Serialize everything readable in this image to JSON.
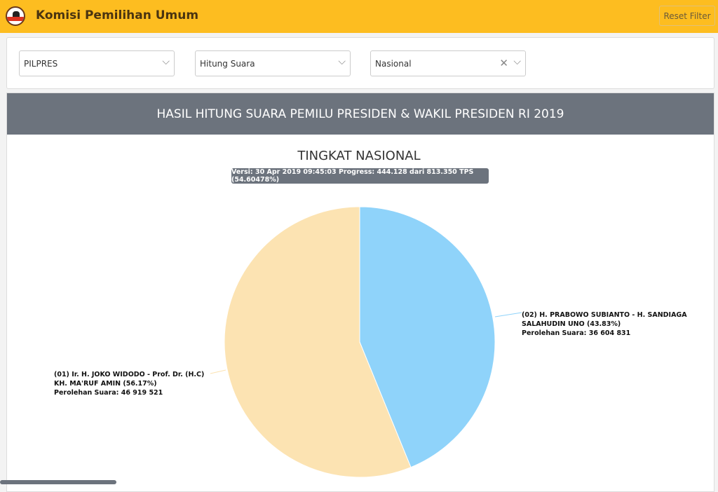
{
  "header": {
    "title": "Komisi Pemilihan Umum",
    "reset_label": "Reset Filter"
  },
  "filters": {
    "election": "PILPRES",
    "type": "Hitung Suara",
    "region": "Nasional"
  },
  "panel": {
    "title": "HASIL HITUNG SUARA PEMILU PRESIDEN & WAKIL PRESIDEN RI 2019"
  },
  "chart_data": {
    "type": "pie",
    "title": "TINGKAT NASIONAL",
    "subtitle": "Versi: 30 Apr 2019 09:45:03 Progress: 444.128 dari 813.350 TPS (54.60478%)",
    "slices": [
      {
        "name_line1": "(02) H. PRABOWO SUBIANTO - H. SANDIAGA",
        "name_line2": "SALAHUDIN UNO (43.83%)",
        "votes_label": "Perolehan Suara: 36 604 831",
        "percent": 43.83,
        "votes": 36604831,
        "color": "#8fd3fa"
      },
      {
        "name_line1": "(01) Ir. H. JOKO WIDODO - Prof. Dr. (H.C)",
        "name_line2": "KH. MA'RUF AMIN (56.17%)",
        "votes_label": "Perolehan Suara: 46 919 521",
        "percent": 56.17,
        "votes": 46919521,
        "color": "#fce3b2"
      }
    ]
  }
}
